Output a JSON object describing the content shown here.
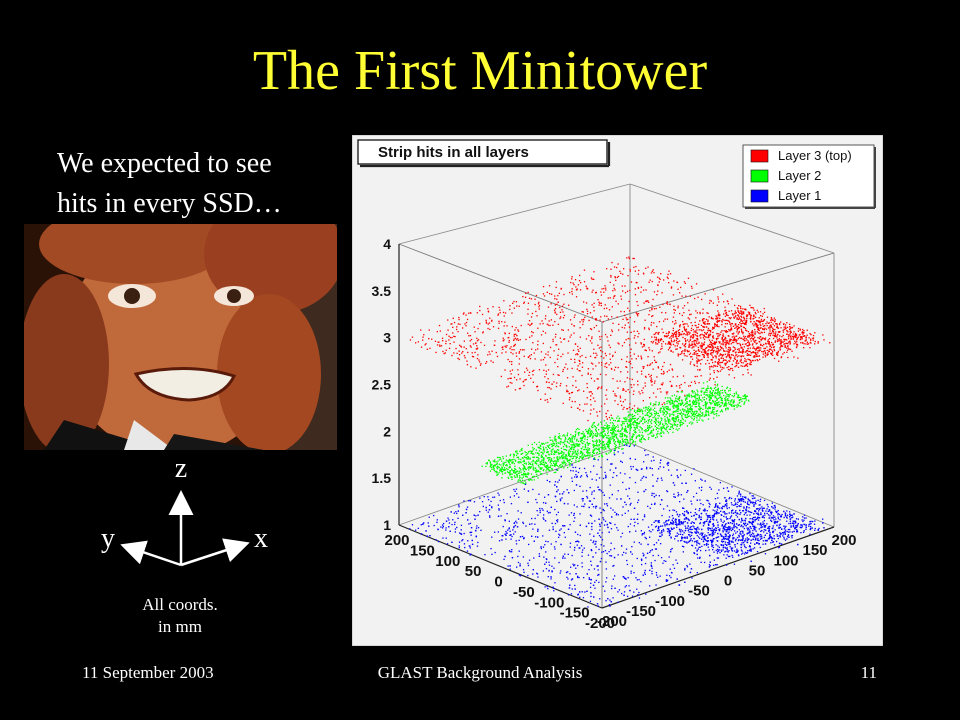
{
  "slide": {
    "title": "The First Minitower",
    "intro_line1": "We expected to see",
    "intro_line2": "hits in every SSD…",
    "coords_note_line1": "All coords.",
    "coords_note_line2": "in mm",
    "axis_z": "z",
    "axis_y": "y",
    "axis_x": "x"
  },
  "footer": {
    "date": "11 September 2003",
    "center": "GLAST Background Analysis",
    "page": "11"
  },
  "chart_data": {
    "type": "scatter",
    "title": "Strip hits in all layers",
    "zlim": [
      1,
      4
    ],
    "z_ticks": [
      "1",
      "1.5",
      "2",
      "2.5",
      "3",
      "3.5",
      "4"
    ],
    "y_ticks": [
      "200",
      "150",
      "100",
      "50",
      "0",
      "-50",
      "-100",
      "-150",
      "-200"
    ],
    "x_ticks": [
      "-200",
      "-150",
      "-100",
      "-50",
      "0",
      "50",
      "100",
      "150",
      "200"
    ],
    "xlim": [
      -200,
      200
    ],
    "ylim": [
      -200,
      200
    ],
    "legend_position": "top-right",
    "series": [
      {
        "name": "Layer 3 (top)",
        "color": "#ff0000",
        "z": 3
      },
      {
        "name": "Layer 2",
        "color": "#00ff00",
        "z": 2
      },
      {
        "name": "Layer 1",
        "color": "#0000ff",
        "z": 1
      }
    ]
  },
  "colors": {
    "background": "#000000",
    "title": "#ffff33",
    "text": "#ffffff",
    "plot_background": "#f2f2f2"
  }
}
